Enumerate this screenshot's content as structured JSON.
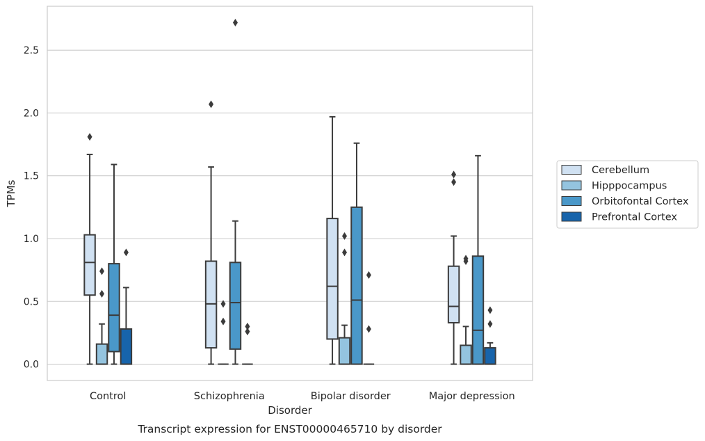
{
  "chart_data": {
    "type": "boxplot",
    "caption": "Transcript expression for ENST00000465710 by disorder",
    "xlabel": "Disorder",
    "ylabel": "TPMs",
    "ylim": [
      -0.13,
      2.85
    ],
    "yticks": [
      0.0,
      0.5,
      1.0,
      1.5,
      2.0,
      2.5
    ],
    "ytick_labels": [
      "0.0",
      "0.5",
      "1.0",
      "1.5",
      "2.0",
      "2.5"
    ],
    "grid": "horizontal",
    "legend_position": "right",
    "categories": [
      "Control",
      "Schizophrenia",
      "Bipolar disorder",
      "Major depression"
    ],
    "series": [
      {
        "name": "Cerebellum",
        "color": "#d0e1f2",
        "boxes": [
          {
            "whislo": 0.0,
            "q1": 0.55,
            "med": 0.81,
            "q3": 1.03,
            "whishi": 1.67,
            "fliers": [
              1.81
            ]
          },
          {
            "whislo": 0.0,
            "q1": 0.13,
            "med": 0.48,
            "q3": 0.82,
            "whishi": 1.57,
            "fliers": [
              2.07
            ]
          },
          {
            "whislo": 0.0,
            "q1": 0.2,
            "med": 0.62,
            "q3": 1.16,
            "whishi": 1.97,
            "fliers": []
          },
          {
            "whislo": 0.0,
            "q1": 0.33,
            "med": 0.46,
            "q3": 0.78,
            "whishi": 1.02,
            "fliers": [
              1.45,
              1.51
            ]
          }
        ]
      },
      {
        "name": "Hipppocampus",
        "color": "#94c4df",
        "boxes": [
          {
            "whislo": 0.0,
            "q1": 0.0,
            "med": 0.0,
            "q3": 0.16,
            "whishi": 0.32,
            "fliers": [
              0.56,
              0.74
            ]
          },
          {
            "whislo": 0.0,
            "q1": 0.0,
            "med": 0.0,
            "q3": 0.0,
            "whishi": 0.0,
            "fliers": [
              0.34,
              0.48
            ]
          },
          {
            "whislo": 0.0,
            "q1": 0.0,
            "med": 0.0,
            "q3": 0.21,
            "whishi": 0.31,
            "fliers": [
              0.89,
              1.02
            ]
          },
          {
            "whislo": 0.0,
            "q1": 0.0,
            "med": 0.0,
            "q3": 0.15,
            "whishi": 0.3,
            "fliers": [
              0.82,
              0.84
            ]
          }
        ]
      },
      {
        "name": "Orbitofontal Cortex",
        "color": "#4a98c9",
        "boxes": [
          {
            "whislo": 0.0,
            "q1": 0.1,
            "med": 0.39,
            "q3": 0.8,
            "whishi": 1.59,
            "fliers": []
          },
          {
            "whislo": 0.0,
            "q1": 0.12,
            "med": 0.49,
            "q3": 0.81,
            "whishi": 1.14,
            "fliers": [
              2.72
            ]
          },
          {
            "whislo": 0.0,
            "q1": 0.0,
            "med": 0.51,
            "q3": 1.25,
            "whishi": 1.76,
            "fliers": []
          },
          {
            "whislo": 0.0,
            "q1": 0.0,
            "med": 0.27,
            "q3": 0.86,
            "whishi": 1.66,
            "fliers": []
          }
        ]
      },
      {
        "name": "Prefrontal Cortex",
        "color": "#1764ab",
        "boxes": [
          {
            "whislo": 0.0,
            "q1": 0.0,
            "med": 0.0,
            "q3": 0.28,
            "whishi": 0.61,
            "fliers": [
              0.89
            ]
          },
          {
            "whislo": 0.0,
            "q1": 0.0,
            "med": 0.0,
            "q3": 0.0,
            "whishi": 0.0,
            "fliers": [
              0.26,
              0.3
            ]
          },
          {
            "whislo": 0.0,
            "q1": 0.0,
            "med": 0.0,
            "q3": 0.0,
            "whishi": 0.0,
            "fliers": [
              0.28,
              0.71
            ]
          },
          {
            "whislo": 0.0,
            "q1": 0.0,
            "med": 0.0,
            "q3": 0.13,
            "whishi": 0.17,
            "fliers": [
              0.32,
              0.43
            ]
          }
        ]
      }
    ]
  }
}
